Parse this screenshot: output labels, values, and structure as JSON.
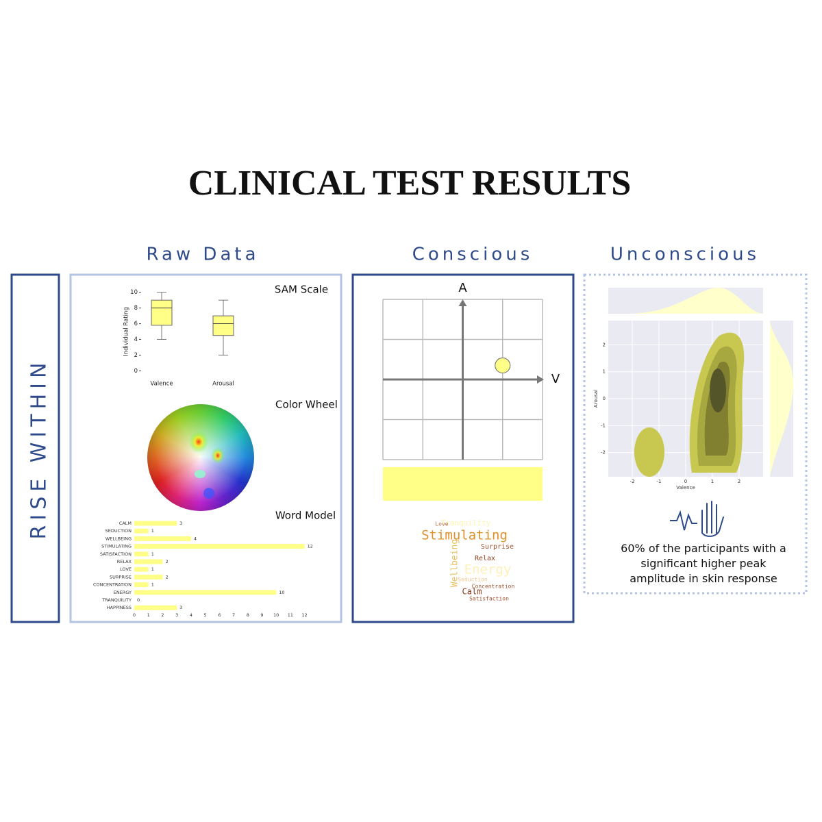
{
  "title": "CLINICAL TEST RESULTS",
  "side_label": "RISE WITHIN",
  "sections": [
    "Raw Data",
    "Conscious",
    "Unconscious"
  ],
  "color_wheel_title": "Color Wheel",
  "chart_data": [
    {
      "type": "box",
      "title": "SAM Scale",
      "ylabel": "Individual Rating",
      "categories": [
        "Valence",
        "Arousal"
      ],
      "whislo": [
        4,
        2
      ],
      "q1": [
        5.8,
        4.5
      ],
      "med": [
        8,
        6
      ],
      "q3": [
        9,
        7
      ],
      "whishi": [
        10,
        9
      ],
      "ylim": [
        -0.5,
        10.5
      ],
      "yticks": [
        0,
        2,
        4,
        6,
        8,
        10
      ],
      "color": "#ffff88"
    },
    {
      "type": "hbar",
      "title": "Word Model",
      "categories": [
        "CALM",
        "SEDUCTION",
        "WELLBEING",
        "STIMULATING",
        "SATISFACTION",
        "RELAX",
        "LOVE",
        "SURPRISE",
        "CONCENTRATION",
        "ENERGY",
        "TRANQUILITY",
        "HAPPINESS"
      ],
      "values": [
        3,
        1,
        4,
        12,
        1,
        2,
        1,
        2,
        1,
        10,
        0,
        3
      ],
      "xlim": [
        0,
        12.5
      ],
      "xticks": [
        0,
        1,
        2,
        3,
        4,
        5,
        6,
        7,
        8,
        9,
        10,
        11,
        12
      ],
      "color": "#ffff88"
    },
    {
      "type": "scatter",
      "xlabel": "V",
      "ylabel": "A",
      "x": [
        1
      ],
      "y": [
        0.35
      ],
      "xlim": [
        -2,
        2
      ],
      "ylim": [
        -2,
        2
      ],
      "color": "#ffff88"
    },
    {
      "type": "kde",
      "xlabel": "Valence",
      "ylabel": "Arousal",
      "xlim": [
        -2.9,
        2.9
      ],
      "ylim": [
        -2.9,
        2.9
      ],
      "xticks": [
        -2,
        -1,
        0,
        1,
        2
      ],
      "yticks": [
        -2,
        -1,
        0,
        1,
        2
      ]
    }
  ],
  "word_cloud": [
    "Tranquility",
    "Love",
    "Stimulating",
    "Surprise",
    "Relax",
    "Wellbeing",
    "Energy",
    "Seduction",
    "Concentration",
    "Calm",
    "Satisfaction"
  ],
  "caption": "60% of the participants with a significant higher peak amplitude in skin response"
}
